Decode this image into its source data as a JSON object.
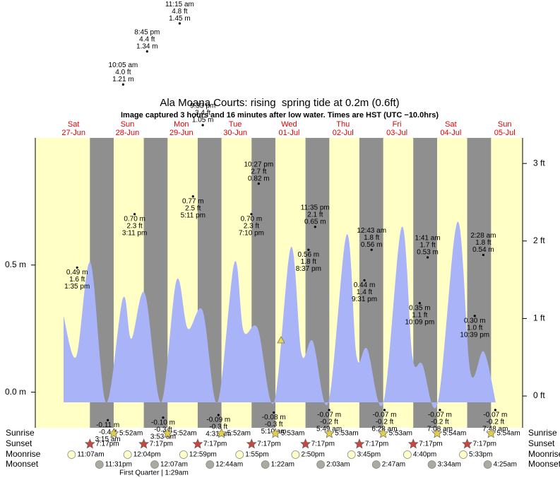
{
  "chart_data": {
    "type": "tide",
    "title": "Ala Moana Courts: rising  spring tide at 0.2m (0.6ft)",
    "subtitle": "Image captured 3 hours and 16 minutes after low water. Times are HST (UTC −10.0hrs)",
    "ylim": [
      -0.14,
      1.0
    ],
    "yticks": [
      {
        "value": 0,
        "label": "0.0 m"
      },
      {
        "value": 0.5,
        "label": "0.5 m"
      }
    ],
    "y2lim": [
      -0.41,
      3.33
    ],
    "y2ticks": [
      {
        "value": 0,
        "label": "0 ft"
      },
      {
        "value": 1,
        "label": "1 ft"
      },
      {
        "value": 2,
        "label": "2 ft"
      },
      {
        "value": 3,
        "label": "3 ft"
      }
    ],
    "day_color": "#ffffc6",
    "night_color": "#8f8f8f",
    "curve": {
      "color": "#a9b3f8",
      "x": [
        "27-Jun 07:33",
        "27-Jun 13:12",
        "27-Jun 19:30",
        "28-Jun 02:25",
        "28-Jun 10:00",
        "28-Jun 13:44",
        "28-Jun 19:43",
        "29-Jun 02:57",
        "29-Jun 09:51",
        "29-Jun 14:54",
        "29-Jun 21:30",
        "30-Jun 04:06",
        "30-Jun 11:39",
        "30-Jun 15:44",
        "30-Jun 22:02",
        "01-Jul 05:15",
        "01-Jul 12:48",
        "01-Jul 17:31",
        "01-Jul 22:33",
        "02-Jul 05:28",
        "02-Jul 13:39",
        "02-Jul 18:03",
        "02-Jul 22:46",
        "03-Jul 06:00",
        "03-Jul 14:10",
        "03-Jul 18:53",
        "03-Jul 23:18",
        "04-Jul 06:13",
        "04-Jul 15:01",
        "04-Jul 20:41",
        "05-Jul 02:39",
        "05-Jul 08:00"
      ],
      "values": [
        0.3,
        0.14,
        0.51,
        -0.04,
        0.37,
        0.21,
        0.39,
        -0.04,
        0.44,
        0.25,
        0.32,
        -0.04,
        0.51,
        0.24,
        0.25,
        -0.04,
        0.57,
        0.15,
        0.2,
        -0.04,
        0.62,
        0.14,
        0.17,
        -0.04,
        0.65,
        0.14,
        0.11,
        -0.04,
        0.67,
        0.08,
        0.16,
        -0.04
      ]
    },
    "row_labels": {
      "sunrise": "Sunrise",
      "sunset": "Sunset",
      "moonrise": "Moonrise",
      "moonset": "Moonset"
    },
    "moon_phase": "First Quarter | 1:29am",
    "days": [
      {
        "weekday": "Sat",
        "date": "27-Jun",
        "sunrise": null,
        "sunset": "7:17pm",
        "moonrise": "11:07am",
        "moonset": "11:31pm",
        "extremes": [
          {
            "time": "1:35 pm",
            "m": {
              "value": 0.49,
              "label": "0.49 m"
            },
            "ft": {
              "value": 1.6,
              "label": "1.6 ft"
            },
            "label_position": "below"
          }
        ]
      },
      {
        "weekday": "Sun",
        "date": "28-Jun",
        "sunrise": "5:52am",
        "sunset": "7:17pm",
        "moonrise": "12:04pm",
        "moonset": null,
        "extremes": [
          {
            "time": "3:15 am",
            "m": {
              "value": -0.11,
              "label": "-0.11 m"
            },
            "ft": {
              "value": -0.4,
              "label": "-0.4 ft"
            },
            "label_position": "below"
          },
          {
            "time": "10:05 am",
            "m": {
              "value": 1.21,
              "label": "1.21 m"
            },
            "ft": {
              "value": 4.0,
              "label": "4.0 ft"
            },
            "label_position": "above"
          },
          {
            "time": "3:11 pm",
            "m": {
              "value": 0.7,
              "label": "0.70 m"
            },
            "ft": {
              "value": 2.3,
              "label": "2.3 ft"
            },
            "label_position": "below"
          },
          {
            "time": "8:45 pm",
            "m": {
              "value": 1.34,
              "label": "1.34 m"
            },
            "ft": {
              "value": 4.4,
              "label": "4.4 ft"
            },
            "label_position": "above"
          }
        ]
      },
      {
        "weekday": "Mon",
        "date": "29-Jun",
        "sunrise": "5:52am",
        "sunset": "7:17pm",
        "moonrise": "12:59pm",
        "moonset": "12:07am",
        "extremes": [
          {
            "time": "3:53 am",
            "m": {
              "value": -0.1,
              "label": "-0.10 m"
            },
            "ft": {
              "value": -0.3,
              "label": "-0.3 ft"
            },
            "label_position": "below"
          },
          {
            "time": "11:15 am",
            "m": {
              "value": 1.45,
              "label": "1.45 m"
            },
            "ft": {
              "value": 4.8,
              "label": "4.8 ft"
            },
            "label_position": "above"
          },
          {
            "time": "5:11 pm",
            "m": {
              "value": 0.77,
              "label": "0.77 m"
            },
            "ft": {
              "value": 2.5,
              "label": "2.5 ft"
            },
            "label_position": "below"
          },
          {
            "time": "9:33 pm",
            "m": {
              "value": 1.05,
              "label": "1.05 m"
            },
            "ft": {
              "value": 3.4,
              "label": "3.4 ft"
            },
            "label_position": "above"
          }
        ]
      },
      {
        "weekday": "Tue",
        "date": "30-Jun",
        "sunrise": "5:52am",
        "sunset": "7:17pm",
        "moonrise": "1:55pm",
        "moonset": "12:44am",
        "extremes": [
          {
            "time": "4:31 am",
            "m": {
              "value": -0.09,
              "label": "-0.09 m"
            },
            "ft": {
              "value": -0.3,
              "label": "-0.3 ft"
            },
            "label_position": "below"
          },
          {
            "time": "7:10 pm",
            "m": {
              "value": 0.7,
              "label": "0.70 m"
            },
            "ft": {
              "value": 2.3,
              "label": "2.3 ft"
            },
            "label_position": "below"
          },
          {
            "time": "10:27 pm",
            "m": {
              "value": 0.82,
              "label": "0.82 m"
            },
            "ft": {
              "value": 2.7,
              "label": "2.7 ft"
            },
            "label_position": "above"
          }
        ]
      },
      {
        "weekday": "Wed",
        "date": "01-Jul",
        "sunrise": "5:53am",
        "sunset": "7:17pm",
        "moonrise": "2:50pm",
        "moonset": "1:22am",
        "extremes": [
          {
            "time": "5:10 am",
            "m": {
              "value": -0.08,
              "label": "-0.08 m"
            },
            "ft": {
              "value": -0.3,
              "label": "-0.3 ft"
            },
            "label_position": "below"
          },
          {
            "time": "8:37 pm",
            "m": {
              "value": 0.56,
              "label": "0.56 m"
            },
            "ft": {
              "value": 1.8,
              "label": "1.8 ft"
            },
            "label_position": "below"
          },
          {
            "time": "11:35 pm",
            "m": {
              "value": 0.65,
              "label": "0.65 m"
            },
            "ft": {
              "value": 2.1,
              "label": "2.1 ft"
            },
            "label_position": "above"
          }
        ]
      },
      {
        "weekday": "Thu",
        "date": "02-Jul",
        "sunrise": "5:53am",
        "sunset": "7:17pm",
        "moonrise": "3:45pm",
        "moonset": "2:03am",
        "extremes": [
          {
            "time": "5:49 am",
            "m": {
              "value": -0.07,
              "label": "-0.07 m"
            },
            "ft": {
              "value": -0.2,
              "label": "-0.2 ft"
            },
            "label_position": "below"
          },
          {
            "time": "9:31 pm",
            "m": {
              "value": 0.44,
              "label": "0.44 m"
            },
            "ft": {
              "value": 1.4,
              "label": "1.4 ft"
            },
            "label_position": "below"
          }
        ]
      },
      {
        "weekday": "Fri",
        "date": "03-Jul",
        "sunrise": "5:53am",
        "sunset": "7:17pm",
        "moonrise": "4:40pm",
        "moonset": "2:47am",
        "extremes": [
          {
            "time": "12:43 am",
            "m": {
              "value": 0.56,
              "label": "0.56 m"
            },
            "ft": {
              "value": 1.8,
              "label": "1.8 ft"
            },
            "label_position": "above"
          },
          {
            "time": "6:28 am",
            "m": {
              "value": -0.07,
              "label": "-0.07 m"
            },
            "ft": {
              "value": -0.2,
              "label": "-0.2 ft"
            },
            "label_position": "below"
          },
          {
            "time": "10:09 pm",
            "m": {
              "value": 0.35,
              "label": "0.35 m"
            },
            "ft": {
              "value": 1.1,
              "label": "1.1 ft"
            },
            "label_position": "below"
          }
        ]
      },
      {
        "weekday": "Sat",
        "date": "04-Jul",
        "sunrise": "5:54am",
        "sunset": "7:17pm",
        "moonrise": "5:33pm",
        "moonset": "3:34am",
        "extremes": [
          {
            "time": "1:41 am",
            "m": {
              "value": 0.53,
              "label": "0.53 m"
            },
            "ft": {
              "value": 1.7,
              "label": "1.7 ft"
            },
            "label_position": "above"
          },
          {
            "time": "7:08 am",
            "m": {
              "value": -0.07,
              "label": "-0.07 m"
            },
            "ft": {
              "value": -0.2,
              "label": "-0.2 ft"
            },
            "label_position": "below"
          },
          {
            "time": "10:39 pm",
            "m": {
              "value": 0.3,
              "label": "0.30 m"
            },
            "ft": {
              "value": 1.0,
              "label": "1.0 ft"
            },
            "label_position": "below"
          }
        ]
      },
      {
        "weekday": "Sun",
        "date": "05-Jul",
        "sunrise": "5:54am",
        "sunset": null,
        "moonrise": null,
        "moonset": "4:25am",
        "extremes": [
          {
            "time": "2:28 am",
            "m": {
              "value": 0.54,
              "label": "0.54 m"
            },
            "ft": {
              "value": 1.8,
              "label": "1.8 ft"
            },
            "label_position": "above"
          },
          {
            "time": "7:48 am",
            "m": {
              "value": -0.07,
              "label": "-0.07 m"
            },
            "ft": {
              "value": -0.2,
              "label": "-0.2 ft"
            },
            "label_position": "below"
          }
        ]
      }
    ]
  }
}
